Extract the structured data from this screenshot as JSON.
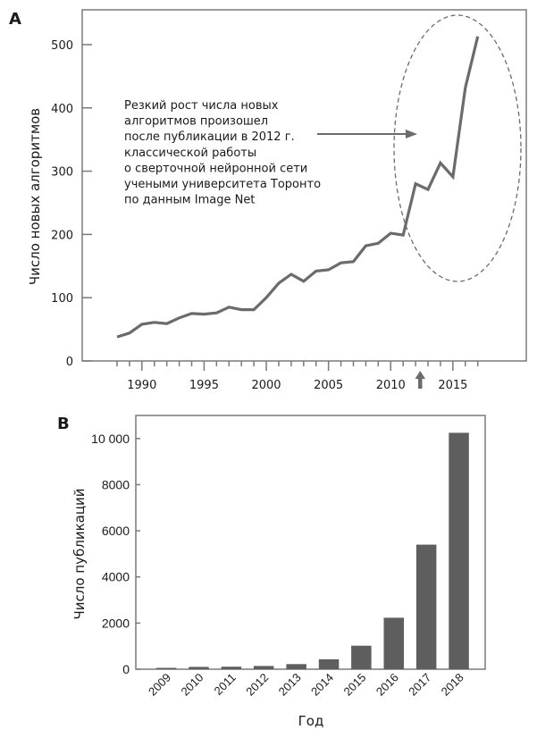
{
  "chart_data": [
    {
      "type": "line",
      "panel_label": "A",
      "xlabel": "",
      "ylabel": "Число новых алгоритмов",
      "x": [
        1988,
        1989,
        1990,
        1991,
        1992,
        1993,
        1994,
        1995,
        1996,
        1997,
        1998,
        1999,
        2000,
        2001,
        2002,
        2003,
        2004,
        2005,
        2006,
        2007,
        2008,
        2009,
        2010,
        2011,
        2012,
        2013,
        2014,
        2015,
        2016,
        2017
      ],
      "series": [
        {
          "name": "Число новых алгоритмов",
          "values": [
            38,
            44,
            58,
            61,
            59,
            68,
            75,
            74,
            76,
            85,
            81,
            81,
            100,
            123,
            137,
            126,
            142,
            144,
            155,
            157,
            182,
            186,
            202,
            199,
            280,
            271,
            313,
            291,
            432,
            513
          ]
        }
      ],
      "xlim": [
        1985.2,
        2020.9
      ],
      "ylim": [
        0,
        555
      ],
      "xticks": [
        1990,
        1995,
        2000,
        2005,
        2010,
        2015
      ],
      "xtick_labels": [
        "1990",
        "1995",
        "2000",
        "2005",
        "2010",
        "2015"
      ],
      "minor_xticks_from": 1988,
      "minor_xticks_to": 2017,
      "yticks": [
        0,
        100,
        200,
        300,
        400,
        500
      ],
      "ytick_labels": [
        "0",
        "100",
        "200",
        "300",
        "400",
        "500"
      ],
      "grid": false,
      "annotation": {
        "lines": [
          "Резкий рост числа новых",
          "алгоритмов произошел",
          "после публикации в 2012 г.",
          "классической работы",
          "о сверточной нейронной сети",
          "учеными университета Торонто",
          "по данным Image Net"
        ],
        "marker_year": 2012,
        "highlight_years": [
          2011,
          2017
        ]
      },
      "line_color": "#6b6b6b"
    },
    {
      "type": "bar",
      "panel_label": "B",
      "xlabel": "Год",
      "ylabel": "Число публикаций",
      "categories": [
        "2009",
        "2010",
        "2011",
        "2012",
        "2013",
        "2014",
        "2015",
        "2016",
        "2017",
        "2018"
      ],
      "values": [
        60,
        100,
        110,
        140,
        220,
        430,
        1020,
        2230,
        5400,
        10250
      ],
      "ylim": [
        0,
        11000
      ],
      "yticks": [
        0,
        2000,
        4000,
        6000,
        8000,
        10000
      ],
      "ytick_labels": [
        "0",
        "2000",
        "4000",
        "6000",
        "8000",
        "10 000"
      ],
      "grid": false,
      "bar_color": "#5e5e5e"
    }
  ]
}
